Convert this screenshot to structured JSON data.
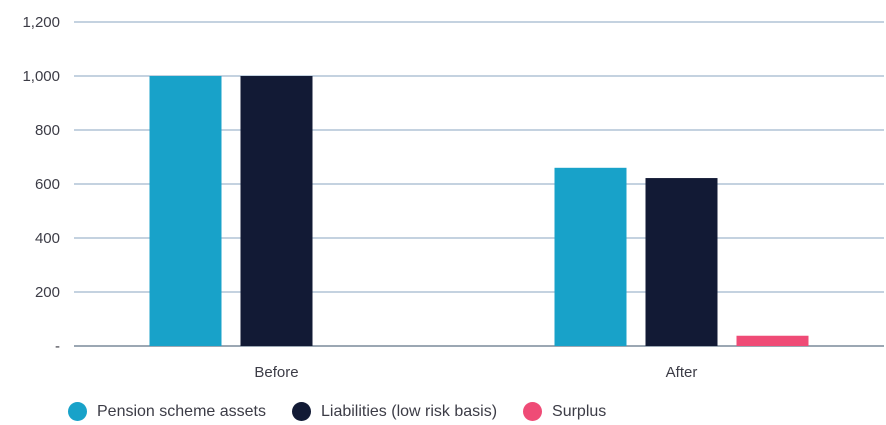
{
  "chart_data": {
    "type": "bar",
    "title": "",
    "xlabel": "",
    "ylabel": "",
    "categories": [
      "Before",
      "After"
    ],
    "series": [
      {
        "name": "Pension scheme assets",
        "color": "#18a2c9",
        "values": [
          1000,
          660
        ]
      },
      {
        "name": "Liabilities (low risk basis)",
        "color": "#121a35",
        "values": [
          1000,
          622
        ]
      },
      {
        "name": "Surplus",
        "color": "#ef4b76",
        "values": [
          0,
          38
        ]
      }
    ],
    "ylim": [
      0,
      1200
    ],
    "yticks": [
      0,
      200,
      400,
      600,
      800,
      1000,
      1200
    ],
    "ytick_labels": [
      "-",
      "200",
      "400",
      "600",
      "800",
      "1,000",
      "1,200"
    ],
    "grid": true,
    "legend_position": "bottom-left"
  }
}
